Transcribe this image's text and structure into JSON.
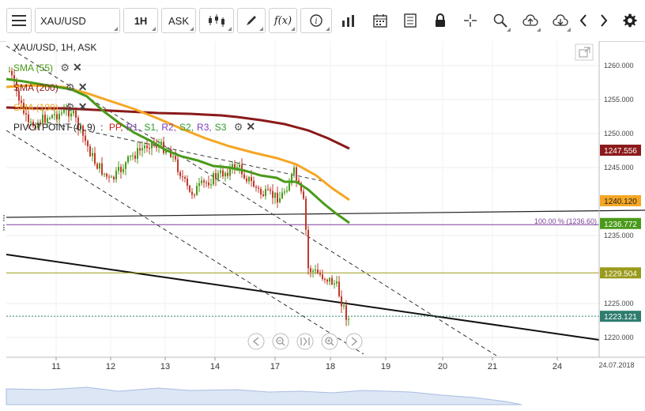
{
  "toolbar": {
    "symbol": "XAU/USD",
    "timeframe": "1H",
    "price_type": "ASK",
    "fx_label": "f(x)"
  },
  "legend": {
    "instrument": "XAU/USD, 1H, ASK",
    "sma55": "SMA (55)",
    "sma200": "SMA (200)",
    "sma100": "SMA (100)",
    "pivot_prefix": "PIVOTPOINT (0, 9)",
    "pivot_sep": ":",
    "pivot_levels": [
      {
        "label": "PP,",
        "color": "#d01a1a"
      },
      {
        "label": "R1,",
        "color": "#7a3fb8"
      },
      {
        "label": "S1,",
        "color": "#2e9a2e"
      },
      {
        "label": "R2,",
        "color": "#7a3fb8"
      },
      {
        "label": "S2,",
        "color": "#2e9a2e"
      },
      {
        "label": "R3,",
        "color": "#7a3fb8"
      },
      {
        "label": "S3",
        "color": "#2e9a2e"
      }
    ]
  },
  "colors": {
    "sma55": "#4a9a1a",
    "sma100": "#f5a623",
    "sma200": "#8b1a1a",
    "candle_up": "#4a9a1a",
    "candle_down": "#c0392b",
    "fib_line": "#7a3f9a",
    "pivot_line": "#9a9a1a",
    "last_price": "#2e7d6e"
  },
  "price_axis": {
    "ticks": [
      "1260.000",
      "1255.000",
      "1250.000",
      "1245.000",
      "1235.000",
      "1225.000",
      "1220.000"
    ],
    "tick_values": [
      1260,
      1255,
      1250,
      1245,
      1235,
      1225,
      1220
    ]
  },
  "time_axis": {
    "labels": [
      "11",
      "12",
      "13",
      "14",
      "17",
      "18",
      "19",
      "20",
      "21",
      "24"
    ],
    "date_label": "24.07.2018"
  },
  "price_tags": [
    {
      "value": "1247.556",
      "price": 1247.556,
      "bg": "#8b1a1a",
      "fg": "#ffffff"
    },
    {
      "value": "1240.120",
      "price": 1240.12,
      "bg": "#f5a623",
      "fg": "#222222"
    },
    {
      "value": "1236.772",
      "price": 1236.772,
      "bg": "#4a9a1a",
      "fg": "#ffffff"
    },
    {
      "value": "1229.504",
      "price": 1229.504,
      "bg": "#9a9a1a",
      "fg": "#ffffff"
    },
    {
      "value": "1223.121",
      "price": 1223.121,
      "bg": "#2e7d6e",
      "fg": "#ffffff"
    }
  ],
  "fib_label": "100.00 % (1236.60)"
}
